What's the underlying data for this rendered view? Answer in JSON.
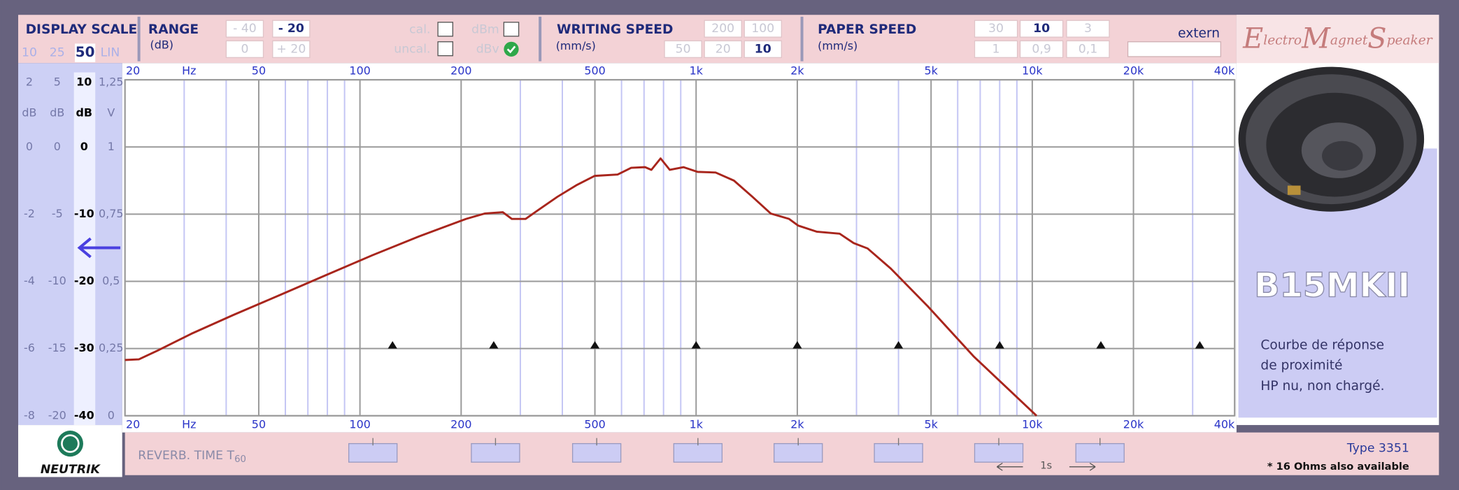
{
  "chart_data": {
    "type": "line",
    "xscale": "log",
    "color": "#a8251c",
    "x": [
      20,
      22,
      25,
      31.5,
      42,
      58,
      79,
      109,
      150,
      207,
      235,
      266,
      283,
      311,
      341,
      387,
      440,
      499,
      584,
      641,
      705,
      736,
      784,
      835,
      917,
      1010,
      1143,
      1296,
      1470,
      1667,
      1890,
      2013,
      2283,
      2673,
      2942,
      3237,
      3795,
      4887,
      6704,
      10300
    ],
    "values": [
      -31.7,
      -31.6,
      -30.3,
      -27.8,
      -25.0,
      -22.0,
      -19.1,
      -16.1,
      -13.3,
      -10.7,
      -9.9,
      -9.7,
      -10.7,
      -10.7,
      -9.3,
      -7.4,
      -5.7,
      -4.3,
      -4.1,
      -3.1,
      -3.0,
      -3.4,
      -1.7,
      -3.4,
      -3.0,
      -3.7,
      -3.8,
      -5.0,
      -7.4,
      -9.9,
      -10.7,
      -11.7,
      -12.6,
      -12.9,
      -14.3,
      -15.1,
      -18.1,
      -23.7,
      -31.2,
      -40
    ],
    "xlim": [
      20,
      40000
    ],
    "xticks": [
      20,
      50,
      100,
      200,
      500,
      {
        "value": 1000,
        "label": "1k"
      },
      {
        "value": 2000,
        "label": "2k"
      },
      {
        "value": 5000,
        "label": "5k"
      },
      {
        "value": 10000,
        "label": "10k"
      },
      {
        "value": 20000,
        "label": "20k"
      },
      {
        "value": 40000,
        "label": "40k"
      }
    ],
    "x_minor_ticks": [
      30,
      40,
      60,
      70,
      80,
      90,
      300,
      400,
      600,
      700,
      800,
      900,
      3000,
      4000,
      6000,
      7000,
      8000,
      9000,
      30000
    ],
    "xlabel": "Hz",
    "ylim": [
      -40,
      10
    ],
    "yticks": [
      10,
      0,
      -10,
      -20,
      -30,
      -40
    ],
    "ylabel": "dB",
    "grid": true,
    "markers": {
      "x": [
        125,
        250,
        500,
        1000,
        2000,
        4000,
        8000,
        16000,
        31500
      ],
      "y": -30
    }
  },
  "ui": {
    "display_scale": {
      "title": "DISPLAY SCALE",
      "buttons": [
        "10",
        "25",
        "50",
        "LIN"
      ]
    },
    "scale_columns": [
      {
        "header": "2",
        "unit": "dB",
        "labels": [
          "0",
          "-2",
          "-4",
          "-6",
          "-8"
        ]
      },
      {
        "header": "5",
        "unit": "dB",
        "labels": [
          "0",
          "-5",
          "-10",
          "-15",
          "-20"
        ]
      },
      {
        "header": "1,25",
        "unit": "V",
        "labels": [
          "1",
          "0,75",
          "0,5",
          "0,25",
          "0"
        ]
      }
    ],
    "range": {
      "title": "RANGE",
      "unit": "(dB)",
      "buttons": [
        "- 40",
        "- 20",
        "0",
        "+ 20"
      ]
    },
    "cal": "cal.",
    "uncal": "uncal.",
    "dbm": "dBm",
    "dbv": "dBv",
    "writing_speed": {
      "title": "WRITING SPEED",
      "unit": "(mm/s)",
      "buttons": [
        "200",
        "100",
        "50",
        "20",
        "10"
      ]
    },
    "paper_speed": {
      "title": "PAPER SPEED",
      "unit": "(mm/s)",
      "buttons": [
        "30",
        "10",
        "3",
        "1",
        "0,9",
        "0,1"
      ]
    },
    "extern": "extern",
    "logo": [
      "E",
      "lectro",
      "M",
      "agnet",
      "S",
      "peaker"
    ],
    "model": "B15MKII",
    "description": [
      "Courbe de réponse",
      "de proximité",
      "HP nu, non chargé."
    ],
    "reverb": {
      "label": "REVERB. TIME T",
      "subscript": "60"
    },
    "time_scale": "1s",
    "type": "Type 3351",
    "note": "* 16 Ohms also available",
    "brand": "NEUTRIK"
  }
}
